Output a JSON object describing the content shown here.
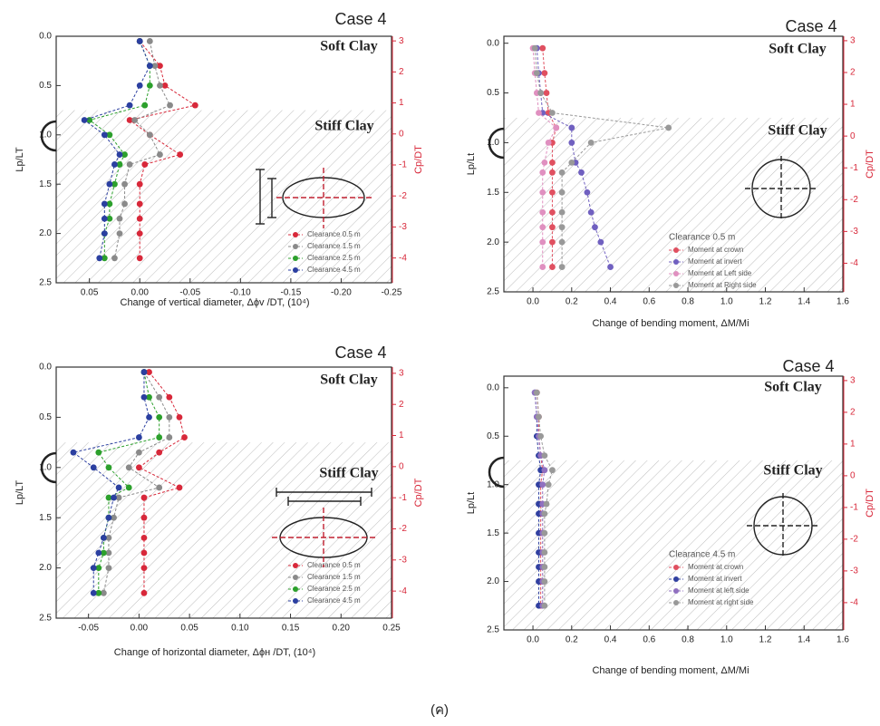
{
  "caption": "(ค)",
  "chart_data": [
    {
      "type": "line",
      "title": "Case 4",
      "xlabel": "Change of vertical diameter, Δϕv /DT, (10⁴)",
      "ylabel": "Lp/LT",
      "y2label": "Cp/DT",
      "annotations": [
        "Soft Clay",
        "Stiff Clay"
      ],
      "stiff_clay_top": 0.75,
      "xlim": [
        0.083,
        -0.25
      ],
      "xticks": [
        0.05,
        {
          "value": 0,
          "label": "0.00"
        },
        -0.05,
        {
          "value": -0.1,
          "label": "-0.10"
        },
        -0.15,
        {
          "value": -0.2,
          "label": "-0.20"
        },
        -0.25
      ],
      "ylim": [
        0,
        2.5
      ],
      "yticks": [
        {
          "value": 0,
          "label": "0.0"
        },
        0.5,
        {
          "value": 1,
          "label": "1.0"
        },
        1.5,
        {
          "value": 2,
          "label": "2.0"
        },
        2.5
      ],
      "y2lim": [
        3.15,
        -4.8
      ],
      "y2ticks": [
        3,
        2,
        1,
        0,
        -1,
        -2,
        -3,
        -4
      ],
      "y": [
        0.05,
        0.3,
        0.5,
        0.7,
        0.85,
        1.0,
        1.2,
        1.3,
        1.5,
        1.7,
        1.85,
        2.0,
        2.25
      ],
      "series": [
        {
          "name": "Clearance 0.5 m",
          "color": "#d8283a",
          "values": [
            0,
            -0.02,
            -0.025,
            -0.055,
            0.01,
            -0.01,
            -0.04,
            -0.005,
            0,
            0,
            0,
            0,
            0
          ]
        },
        {
          "name": "Clearance 1.5 m",
          "color": "#8a8a8a",
          "values": [
            -0.01,
            -0.015,
            -0.02,
            -0.03,
            0.005,
            -0.01,
            -0.02,
            0.01,
            0.015,
            0.015,
            0.02,
            0.02,
            0.025
          ]
        },
        {
          "name": "Clearance 2.5 m",
          "color": "#2ca02c",
          "values": [
            0,
            -0.01,
            -0.01,
            -0.005,
            0.05,
            0.03,
            0.015,
            0.02,
            0.025,
            0.03,
            0.03,
            0.035,
            0.035
          ]
        },
        {
          "name": "Clearance 4.5 m",
          "color": "#2b3fa0",
          "values": [
            0,
            -0.01,
            0,
            0.01,
            0.055,
            0.035,
            0.02,
            0.025,
            0.03,
            0.035,
            0.035,
            0.035,
            0.04
          ]
        }
      ]
    },
    {
      "type": "line",
      "title": "Case 4",
      "xlabel": "Change of bending moment, ΔM/Mi",
      "ylabel": "Lp/Lt",
      "y2label": "Cp/DT",
      "annotations": [
        "Soft Clay",
        "Stiff Clay"
      ],
      "stiff_clay_top": 0.75,
      "legend_title": "Clearance 0.5 m",
      "xlim": [
        -0.15,
        1.6
      ],
      "xticks": [
        {
          "value": 0,
          "label": "0.0"
        },
        0.2,
        0.4,
        0.6,
        0.8,
        {
          "value": 1,
          "label": "1.0"
        },
        1.2,
        1.4,
        1.6
      ],
      "ylim": [
        -0.07,
        2.5
      ],
      "yticks": [
        {
          "value": 0,
          "label": "0.0"
        },
        0.5,
        {
          "value": 1,
          "label": "1.0"
        },
        1.5,
        {
          "value": 2,
          "label": "2.0"
        },
        2.5
      ],
      "y2lim": [
        3.14,
        -4.9
      ],
      "y2ticks": [
        3,
        2,
        1,
        0,
        -1,
        -2,
        -3,
        -4
      ],
      "y": [
        0.05,
        0.3,
        0.5,
        0.7,
        0.85,
        1.0,
        1.2,
        1.3,
        1.5,
        1.7,
        1.85,
        2.0,
        2.25
      ],
      "series": [
        {
          "name": "Moment at crown",
          "color": "#e05060",
          "values": [
            0.05,
            0.06,
            0.07,
            0.08,
            0.12,
            0.1,
            0.1,
            0.1,
            0.1,
            0.1,
            0.1,
            0.1,
            0.1
          ]
        },
        {
          "name": "Moment at invert",
          "color": "#7060c0",
          "values": [
            0.02,
            0.03,
            0.04,
            0.05,
            0.2,
            0.2,
            0.22,
            0.25,
            0.28,
            0.3,
            0.32,
            0.35,
            0.4
          ]
        },
        {
          "name": "Moment at Left side",
          "color": "#e090c0",
          "values": [
            0,
            0.01,
            0.02,
            0.03,
            0.12,
            0.08,
            0.06,
            0.05,
            0.05,
            0.05,
            0.05,
            0.05,
            0.05
          ]
        },
        {
          "name": "Moment at Right side",
          "color": "#999999",
          "values": [
            0.01,
            0.02,
            0.04,
            0.1,
            0.7,
            0.3,
            0.2,
            0.15,
            0.15,
            0.15,
            0.15,
            0.15,
            0.15
          ]
        }
      ]
    },
    {
      "type": "line",
      "title": "Case 4",
      "xlabel": "Change of horizontal diameter, Δϕн /DT, (10⁴)",
      "ylabel": "Lp/LT",
      "y2label": "Cp/DT",
      "annotations": [
        "Soft Clay",
        "Stiff Clay"
      ],
      "stiff_clay_top": 0.75,
      "xlim": [
        -0.082,
        0.25
      ],
      "xticks": [
        -0.05,
        {
          "value": 0,
          "label": "0.00"
        },
        0.05,
        {
          "value": 0.1,
          "label": "0.10"
        },
        0.15,
        {
          "value": 0.2,
          "label": "0.20"
        },
        0.25
      ],
      "ylim": [
        0,
        2.5
      ],
      "yticks": [
        {
          "value": 0,
          "label": "0.0"
        },
        0.5,
        {
          "value": 1,
          "label": "1.0"
        },
        1.5,
        {
          "value": 2,
          "label": "2.0"
        },
        2.5
      ],
      "y2lim": [
        3.2,
        -4.87
      ],
      "y2ticks": [
        3,
        2,
        1,
        0,
        -1,
        -2,
        -3,
        -4
      ],
      "y": [
        0.05,
        0.3,
        0.5,
        0.7,
        0.85,
        1.0,
        1.2,
        1.3,
        1.5,
        1.7,
        1.85,
        2.0,
        2.25
      ],
      "series": [
        {
          "name": "Clearance 0.5 m",
          "color": "#d8283a",
          "values": [
            0.01,
            0.03,
            0.04,
            0.045,
            0.02,
            0,
            0.04,
            0.005,
            0.005,
            0.005,
            0.005,
            0.005,
            0.005
          ]
        },
        {
          "name": "Clearance 1.5 m",
          "color": "#8a8a8a",
          "values": [
            0.005,
            0.02,
            0.03,
            0.03,
            0,
            -0.01,
            0.02,
            -0.02,
            -0.025,
            -0.03,
            -0.03,
            -0.03,
            -0.035
          ]
        },
        {
          "name": "Clearance 2.5 m",
          "color": "#2ca02c",
          "values": [
            0.005,
            0.01,
            0.02,
            0.02,
            -0.04,
            -0.03,
            -0.01,
            -0.03,
            -0.03,
            -0.035,
            -0.035,
            -0.04,
            -0.04
          ]
        },
        {
          "name": "Clearance 4.5 m",
          "color": "#2b3fa0",
          "values": [
            0.005,
            0.005,
            0.01,
            0,
            -0.065,
            -0.045,
            -0.02,
            -0.025,
            -0.03,
            -0.035,
            -0.04,
            -0.045,
            -0.045
          ]
        }
      ]
    },
    {
      "type": "line",
      "title": "Case 4",
      "xlabel": "Change of bending moment, ΔM/Mi",
      "ylabel": "Lp/Lt",
      "y2label": "Cp/DT",
      "annotations": [
        "Soft Clay",
        "Stiff Clay"
      ],
      "stiff_clay_top": 0.75,
      "legend_title": "Clearance 4.5 m",
      "xlim": [
        -0.15,
        1.6
      ],
      "xticks": [
        {
          "value": 0,
          "label": "0.0"
        },
        0.2,
        0.4,
        0.6,
        0.8,
        {
          "value": 1,
          "label": "1.0"
        },
        1.2,
        1.4,
        1.6
      ],
      "ylim": [
        -0.12,
        2.5
      ],
      "yticks": [
        {
          "value": 0,
          "label": "0.0"
        },
        0.5,
        {
          "value": 1,
          "label": "1.0"
        },
        1.5,
        {
          "value": 2,
          "label": "2.0"
        },
        2.5
      ],
      "y2lim": [
        3.14,
        -4.86
      ],
      "y2ticks": [
        3,
        2,
        1,
        0,
        -1,
        -2,
        -3,
        -4
      ],
      "y": [
        0.05,
        0.3,
        0.5,
        0.7,
        0.85,
        1.0,
        1.2,
        1.3,
        1.5,
        1.7,
        1.85,
        2.0,
        2.25
      ],
      "series": [
        {
          "name": "Moment at crown",
          "color": "#e05060",
          "values": [
            0.02,
            0.03,
            0.03,
            0.04,
            0.05,
            0.04,
            0.04,
            0.04,
            0.04,
            0.04,
            0.04,
            0.04,
            0.04
          ]
        },
        {
          "name": "Moment at invert",
          "color": "#3040a0",
          "values": [
            0.01,
            0.02,
            0.02,
            0.03,
            0.04,
            0.03,
            0.03,
            0.03,
            0.03,
            0.03,
            0.03,
            0.03,
            0.03
          ]
        },
        {
          "name": "Moment at left side",
          "color": "#9070c0",
          "values": [
            0.01,
            0.02,
            0.03,
            0.04,
            0.06,
            0.05,
            0.05,
            0.05,
            0.05,
            0.05,
            0.05,
            0.05,
            0.05
          ]
        },
        {
          "name": "Moment at right side",
          "color": "#999999",
          "values": [
            0.02,
            0.03,
            0.04,
            0.06,
            0.1,
            0.08,
            0.07,
            0.06,
            0.06,
            0.06,
            0.06,
            0.06,
            0.06
          ]
        }
      ]
    }
  ]
}
